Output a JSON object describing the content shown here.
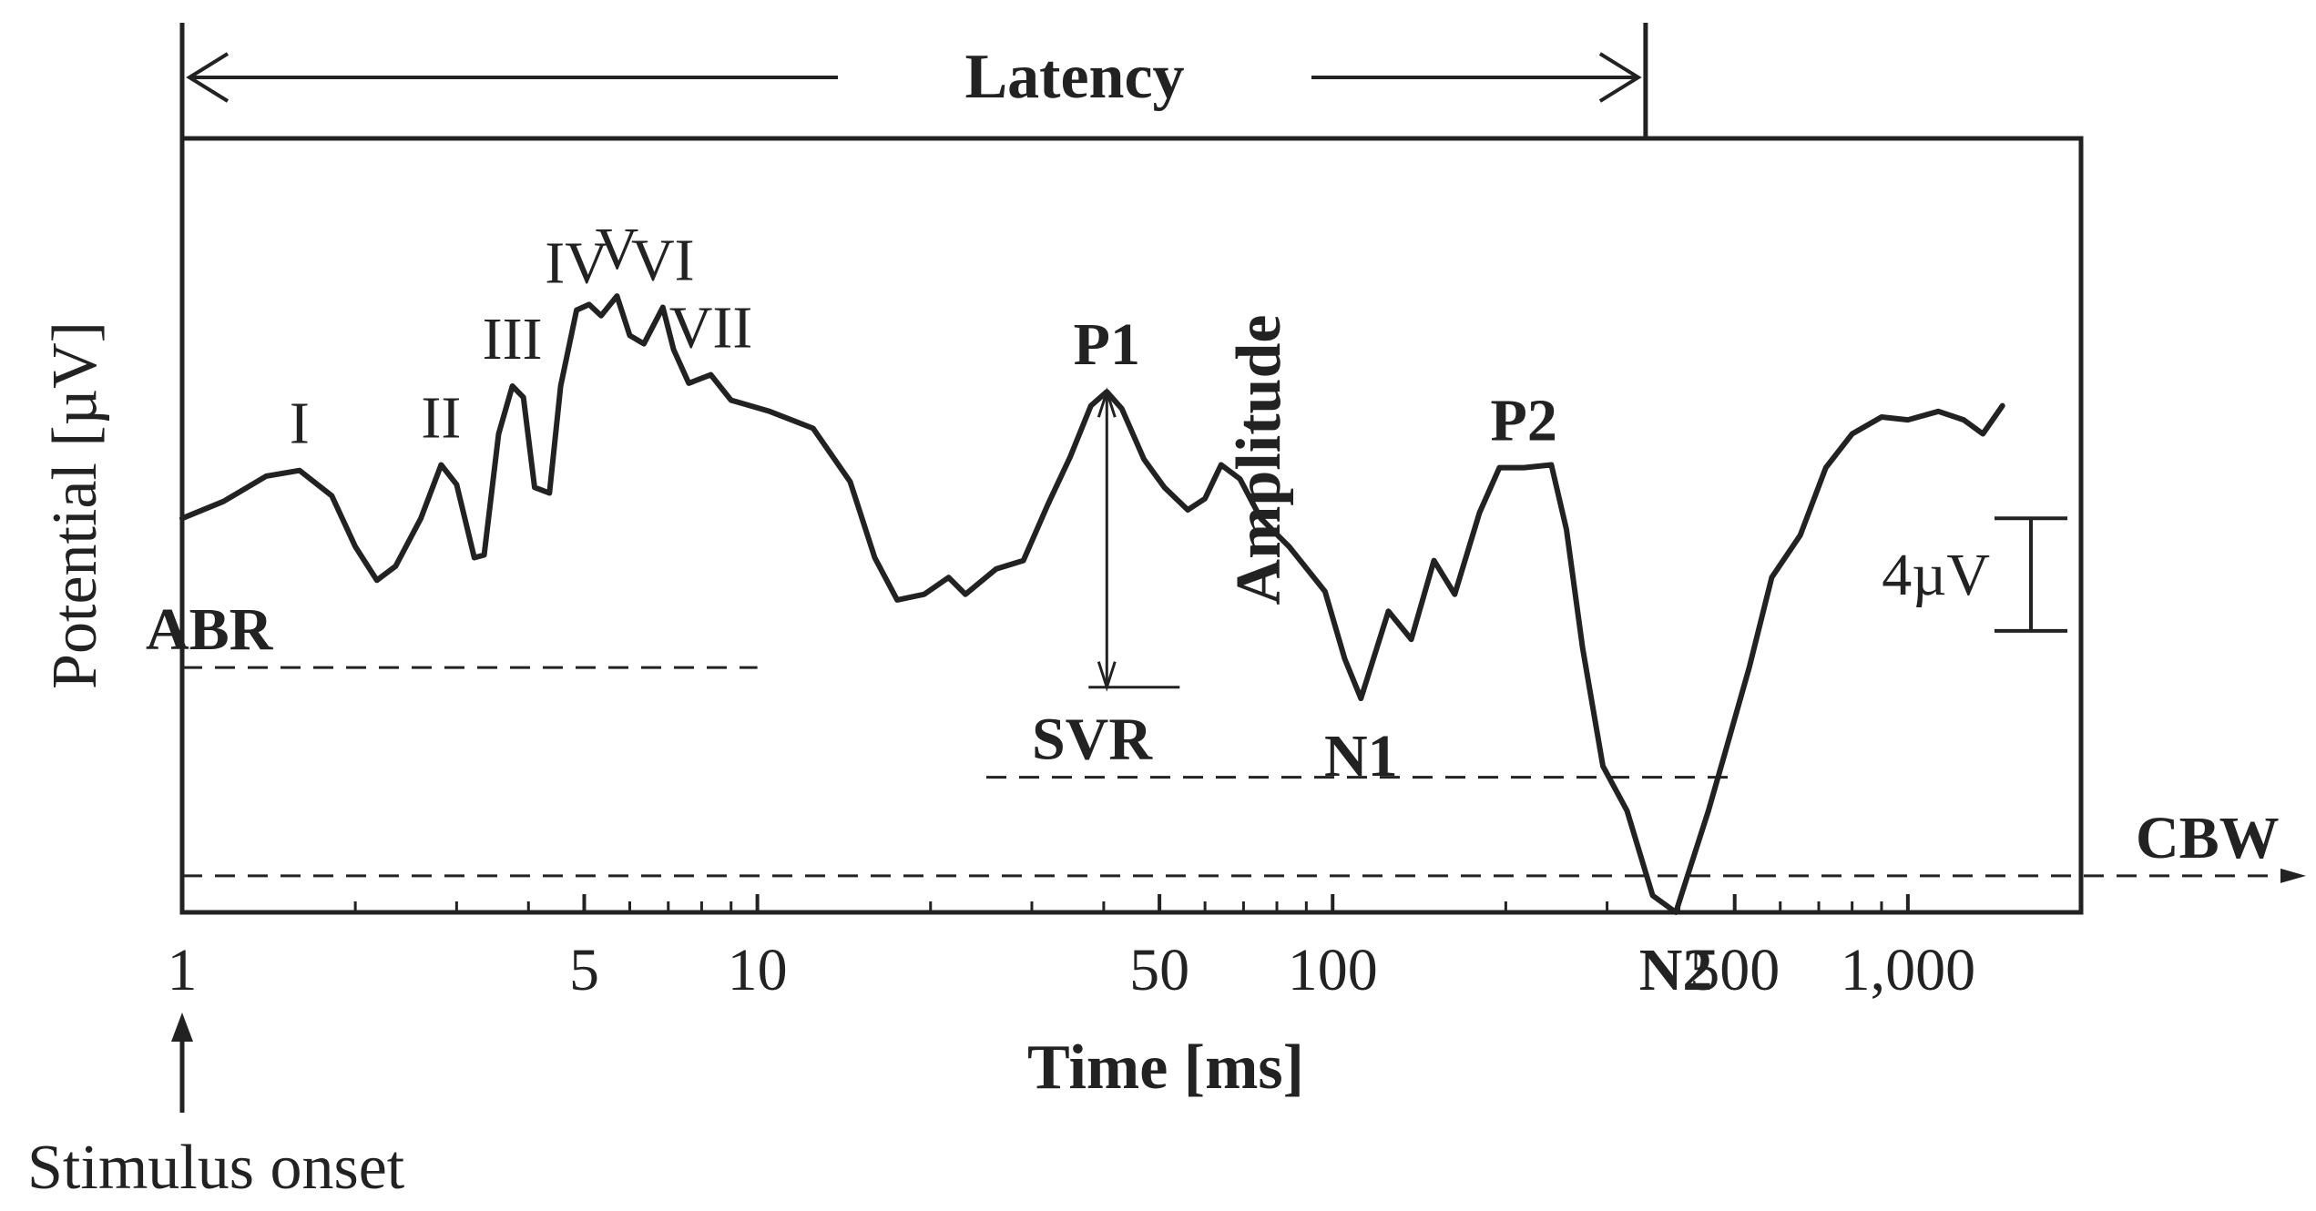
{
  "chart_data": {
    "type": "line",
    "title": "Latency",
    "xlabel": "Time [ms]",
    "ylabel": "Potential [µV]",
    "x_scale": "log",
    "xlim": [
      1,
      2000
    ],
    "ylim": [
      -14,
      13.5
    ],
    "grid": false,
    "x_ticks": [
      {
        "value": 1,
        "label": "1"
      },
      {
        "value": 5,
        "label": "5"
      },
      {
        "value": 10,
        "label": "10"
      },
      {
        "value": 50,
        "label": "50"
      },
      {
        "value": 100,
        "label": "100"
      },
      {
        "value": 500,
        "label": "500"
      },
      {
        "value": 1000,
        "label": "1,000"
      }
    ],
    "x_minor_ticks": [
      2,
      3,
      4,
      6,
      7,
      8,
      9,
      20,
      30,
      40,
      60,
      70,
      80,
      90,
      200,
      300,
      400,
      600,
      700,
      800,
      900,
      2000
    ],
    "series": [
      {
        "color": "#222222",
        "points": [
          [
            1.0,
            0.0
          ],
          [
            1.18,
            0.6
          ],
          [
            1.4,
            1.5
          ],
          [
            1.6,
            1.7
          ],
          [
            1.82,
            0.8
          ],
          [
            2.0,
            -1.0
          ],
          [
            2.18,
            -2.2
          ],
          [
            2.35,
            -1.7
          ],
          [
            2.6,
            0.0
          ],
          [
            2.82,
            1.9
          ],
          [
            3.0,
            1.2
          ],
          [
            3.22,
            -1.4
          ],
          [
            3.35,
            -1.3
          ],
          [
            3.55,
            3.0
          ],
          [
            3.75,
            4.7
          ],
          [
            3.92,
            4.3
          ],
          [
            4.1,
            1.1
          ],
          [
            4.35,
            0.9
          ],
          [
            4.55,
            4.7
          ],
          [
            4.85,
            7.4
          ],
          [
            5.1,
            7.6
          ],
          [
            5.35,
            7.2
          ],
          [
            5.7,
            7.9
          ],
          [
            6.0,
            6.5
          ],
          [
            6.35,
            6.2
          ],
          [
            6.85,
            7.5
          ],
          [
            7.15,
            6.0
          ],
          [
            7.6,
            4.8
          ],
          [
            8.3,
            5.1
          ],
          [
            9.0,
            4.2
          ],
          [
            10.5,
            3.8
          ],
          [
            12.5,
            3.2
          ],
          [
            14.5,
            1.3
          ],
          [
            16.0,
            -1.4
          ],
          [
            17.5,
            -2.9
          ],
          [
            19.5,
            -2.7
          ],
          [
            21.5,
            -2.1
          ],
          [
            23.0,
            -2.7
          ],
          [
            26.0,
            -1.8
          ],
          [
            29.0,
            -1.5
          ],
          [
            32.0,
            0.5
          ],
          [
            35.0,
            2.2
          ],
          [
            38.0,
            4.0
          ],
          [
            40.5,
            4.5
          ],
          [
            43.0,
            3.9
          ],
          [
            47.0,
            2.1
          ],
          [
            51.0,
            1.1
          ],
          [
            56.0,
            0.3
          ],
          [
            60.0,
            0.7
          ],
          [
            64.0,
            1.9
          ],
          [
            69.0,
            1.4
          ],
          [
            75.0,
            0.0
          ],
          [
            84.0,
            -1.0
          ],
          [
            97.0,
            -2.6
          ],
          [
            105.0,
            -5.0
          ],
          [
            112.0,
            -6.4
          ],
          [
            125.0,
            -3.3
          ],
          [
            137.0,
            -4.3
          ],
          [
            150.0,
            -1.5
          ],
          [
            163.0,
            -2.7
          ],
          [
            180.0,
            0.2
          ],
          [
            195.0,
            1.8
          ],
          [
            215.0,
            1.8
          ],
          [
            240.0,
            1.9
          ],
          [
            255.0,
            -0.4
          ],
          [
            272.0,
            -4.6
          ],
          [
            295.0,
            -8.8
          ],
          [
            325.0,
            -10.4
          ],
          [
            360.0,
            -13.4
          ],
          [
            395.0,
            -14.0
          ],
          [
            420.0,
            -12.3
          ],
          [
            450.0,
            -10.4
          ],
          [
            480.0,
            -8.4
          ],
          [
            530.0,
            -5.3
          ],
          [
            580.0,
            -2.1
          ],
          [
            650.0,
            -0.6
          ],
          [
            720.0,
            1.8
          ],
          [
            800.0,
            3.0
          ],
          [
            900.0,
            3.6
          ],
          [
            1000.0,
            3.5
          ],
          [
            1130.0,
            3.8
          ],
          [
            1250.0,
            3.5
          ],
          [
            1350.0,
            3.0
          ],
          [
            1460.0,
            4.0
          ]
        ]
      }
    ],
    "peak_labels": [
      {
        "text": "I",
        "x": 1.6,
        "y": 1.7
      },
      {
        "text": "II",
        "x": 2.82,
        "y": 1.9
      },
      {
        "text": "III",
        "x": 3.75,
        "y": 4.7
      },
      {
        "text": "IV",
        "x": 4.85,
        "y": 7.4
      },
      {
        "text": "V",
        "x": 5.7,
        "y": 7.9
      },
      {
        "text": "VI",
        "x": 6.85,
        "y": 7.5
      },
      {
        "text": "VII",
        "x": 8.3,
        "y": 5.1
      },
      {
        "text": "P1",
        "x": 40.5,
        "y": 4.5
      },
      {
        "text": "N1",
        "x": 112,
        "y": -6.4
      },
      {
        "text": "P2",
        "x": 215,
        "y": 1.8
      },
      {
        "text": "N2",
        "x": 395,
        "y": -14.0
      }
    ],
    "region_labels": [
      {
        "text": "ABR",
        "baseline_y": -5.3,
        "x_start": 1,
        "x_end": 10
      },
      {
        "text": "SVR",
        "baseline_y": -9.2,
        "x_start": 25,
        "x_end": 500
      },
      {
        "text": "CBW",
        "baseline_y": -12.7,
        "x_start": 1,
        "x_end": 2000
      }
    ],
    "amplitude_label": "Amplitude",
    "scale_bar_label": "4µV",
    "scale_bar_uv": 4,
    "stimulus_label": "Stimulus onset",
    "latency_end_ms": 350
  }
}
